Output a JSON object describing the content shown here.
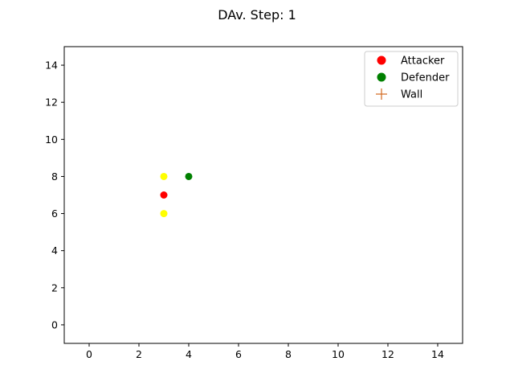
{
  "chart_data": {
    "type": "scatter",
    "title": "DAv. Step: 1",
    "xlabel": "",
    "ylabel": "",
    "xlim": [
      -1,
      15
    ],
    "ylim": [
      -1,
      15
    ],
    "xticks": [
      0,
      2,
      4,
      6,
      8,
      10,
      12,
      14
    ],
    "yticks": [
      0,
      2,
      4,
      6,
      8,
      10,
      12,
      14
    ],
    "xtick_labels": [
      "0",
      "2",
      "4",
      "6",
      "8",
      "10",
      "12",
      "14"
    ],
    "ytick_labels": [
      "0",
      "2",
      "4",
      "6",
      "8",
      "10",
      "12",
      "14"
    ],
    "grid": false,
    "legend_position": "top-right",
    "series": [
      {
        "name": "Attacker",
        "color": "#ff0000",
        "marker": "circle",
        "points": [
          {
            "x": 3,
            "y": 7
          }
        ]
      },
      {
        "name": "Defender",
        "color": "#008000",
        "marker": "circle",
        "points": [
          {
            "x": 4,
            "y": 8
          }
        ]
      },
      {
        "name": "Wall",
        "color": "#d2691e",
        "marker": "plus",
        "points": []
      }
    ],
    "extra_points": {
      "color": "#ffff00",
      "marker": "circle",
      "points": [
        {
          "x": 3,
          "y": 8
        },
        {
          "x": 3,
          "y": 6
        }
      ]
    }
  }
}
